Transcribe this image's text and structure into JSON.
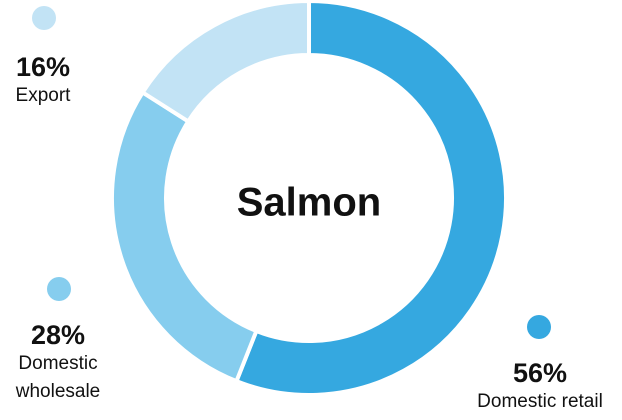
{
  "chart_data": {
    "type": "donut",
    "title": "Salmon",
    "categories": [
      "Domestic retail",
      "Domestic wholesale",
      "Export"
    ],
    "values": [
      56,
      28,
      16
    ],
    "value_labels": [
      "56%",
      "28%",
      "16%"
    ],
    "colors": [
      "#35a8e0",
      "#86cdee",
      "#c2e3f5"
    ]
  }
}
